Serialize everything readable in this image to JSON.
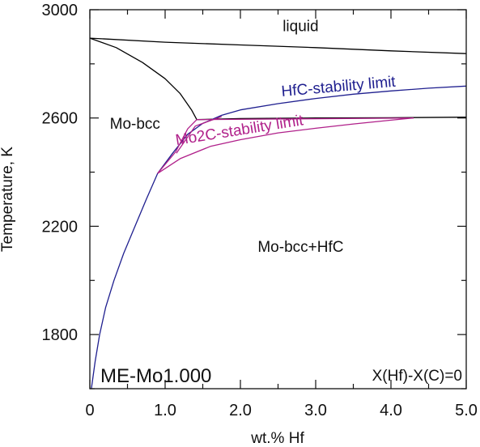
{
  "chart_data": {
    "type": "line",
    "xlabel": "wt.% Hf",
    "ylabel": "Temperature, K",
    "xlim": [
      0,
      5
    ],
    "ylim": [
      1600,
      3000
    ],
    "x_ticks": [
      "0",
      "1.0",
      "2.0",
      "3.0",
      "4.0",
      "5.0"
    ],
    "y_ticks": [
      "1800",
      "2200",
      "2600",
      "3000"
    ],
    "y_tick_values": [
      1800,
      2200,
      2600,
      3000
    ],
    "x_tick_values": [
      0,
      1,
      2,
      3,
      4,
      5
    ],
    "series": [
      {
        "color": "#000000",
        "points": [
          [
            0,
            2895
          ],
          [
            1.0,
            2880
          ],
          [
            2.0,
            2870
          ],
          [
            3.0,
            2860
          ],
          [
            4.0,
            2848
          ],
          [
            5.0,
            2838
          ]
        ]
      },
      {
        "color": "#000000",
        "points": [
          [
            0,
            2895
          ],
          [
            0.35,
            2860
          ],
          [
            0.7,
            2805
          ],
          [
            1.0,
            2745
          ],
          [
            1.2,
            2690
          ],
          [
            1.35,
            2630
          ],
          [
            1.42,
            2594
          ]
        ]
      },
      {
        "color": "#000000",
        "points": [
          [
            1.42,
            2594
          ],
          [
            2.0,
            2598
          ],
          [
            3.0,
            2600
          ],
          [
            4.0,
            2601
          ],
          [
            5.0,
            2603
          ]
        ]
      },
      {
        "color": "#1f1f8f",
        "name": "HfC-stability limit",
        "points": [
          [
            0.02,
            1600
          ],
          [
            0.07,
            1700
          ],
          [
            0.13,
            1800
          ],
          [
            0.21,
            1900
          ],
          [
            0.32,
            2000
          ],
          [
            0.45,
            2100
          ],
          [
            0.6,
            2200
          ],
          [
            0.75,
            2300
          ],
          [
            0.9,
            2395
          ],
          [
            1.1,
            2470
          ],
          [
            1.3,
            2540
          ],
          [
            1.5,
            2580
          ],
          [
            1.75,
            2610
          ],
          [
            2.0,
            2630
          ],
          [
            2.5,
            2653
          ],
          [
            3.0,
            2672
          ],
          [
            3.5,
            2688
          ],
          [
            4.0,
            2700
          ],
          [
            4.5,
            2710
          ],
          [
            5.0,
            2718
          ]
        ]
      },
      {
        "color": "#b0208a",
        "name": "Mo2C-stability limit",
        "points": [
          [
            0.9,
            2395
          ],
          [
            1.2,
            2450
          ],
          [
            1.6,
            2495
          ],
          [
            2.0,
            2520
          ],
          [
            2.5,
            2545
          ],
          [
            3.0,
            2562
          ],
          [
            3.5,
            2578
          ],
          [
            4.0,
            2592
          ],
          [
            4.3,
            2600
          ]
        ]
      },
      {
        "color": "#b0208a",
        "points": [
          [
            1.42,
            2594
          ],
          [
            4.3,
            2600
          ]
        ]
      },
      {
        "color": "#b0208a",
        "points": [
          [
            1.42,
            2594
          ],
          [
            1.3,
            2560
          ],
          [
            1.14,
            2475
          ],
          [
            0.9,
            2395
          ]
        ]
      },
      {
        "color": "#b0208a",
        "points": [
          [
            1.75,
            2605
          ],
          [
            1.4,
            2570
          ],
          [
            1.15,
            2470
          ]
        ]
      }
    ],
    "region_labels": [
      {
        "text": "liquid",
        "x": 2.8,
        "y": 2920
      },
      {
        "text": "Mo-bcc",
        "x": 0.6,
        "y": 2560
      },
      {
        "text": "Mo-bcc+HfC",
        "x": 2.8,
        "y": 2105
      }
    ],
    "curve_labels": [
      {
        "text": "HfC-stability limit",
        "x": 2.55,
        "y": 2680,
        "color": "#1f1f8f",
        "angle": -5
      },
      {
        "text": "Mo2C-stability limit",
        "x": 1.15,
        "y": 2500,
        "color": "#b0208a",
        "angle": -9
      }
    ],
    "corner_labels": {
      "left": "ME-Mo1.000",
      "right": "X(Hf)-X(C)=0"
    },
    "grid": false
  }
}
